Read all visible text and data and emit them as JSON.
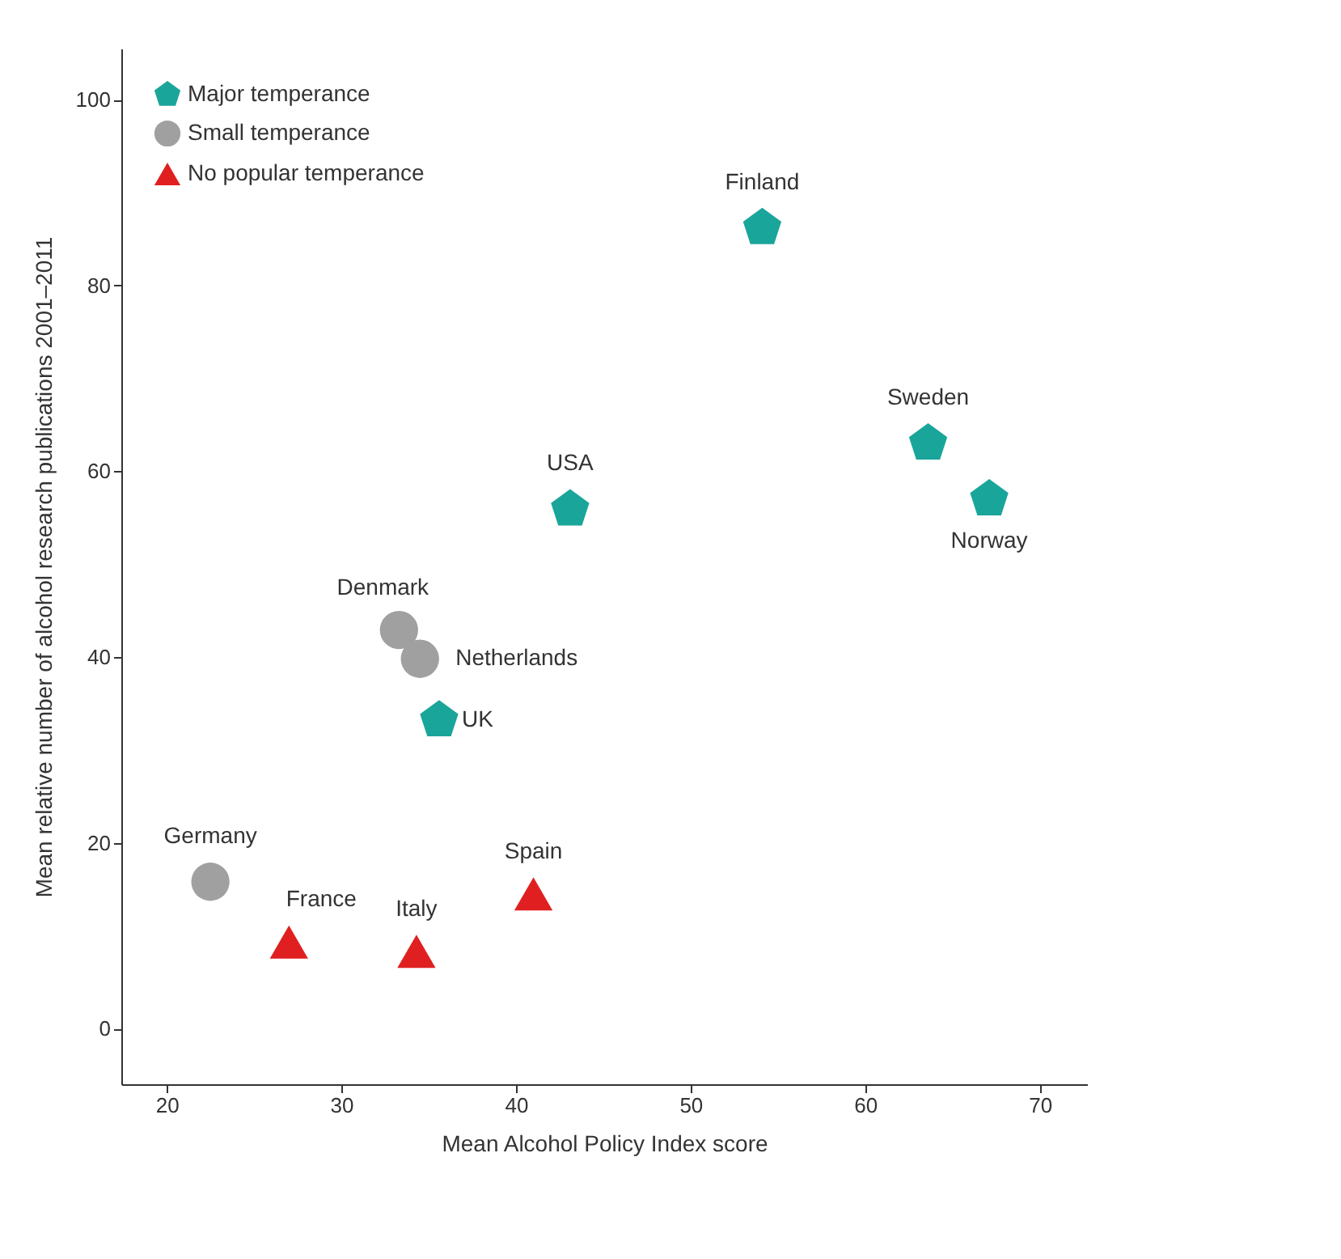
{
  "chart_data": {
    "type": "scatter",
    "xlabel": "Mean Alcohol Policy Index score",
    "ylabel": "Mean relative number of alcohol research publications 2001–2011",
    "xlim": [
      17.4,
      72.7
    ],
    "xticks": [
      20,
      30,
      40,
      50,
      60,
      70
    ],
    "ylim": [
      -6,
      105.5
    ],
    "yticks": [
      0,
      20,
      40,
      60,
      80,
      100
    ],
    "grid": false,
    "legend": "top left",
    "series": [
      {
        "name": "Major temperance",
        "color": "#1aa59a",
        "x": [
          54.1,
          63.6,
          67.1,
          43.1,
          35.6
        ],
        "values": [
          86.2,
          63.0,
          57.0,
          55.9,
          33.2
        ]
      },
      {
        "name": "Small temperance",
        "color": "#a0a0a0",
        "marker": "circle",
        "x": [
          33.3,
          34.5,
          22.5
        ],
        "values": [
          42.9,
          39.8,
          15.8
        ]
      },
      {
        "name": "No popular temperance",
        "color": "#e02020",
        "marker": "triangle",
        "x": [
          27.0,
          34.3,
          41.0
        ],
        "values": [
          9.3,
          8.3,
          14.5
        ]
      }
    ],
    "annotations": [
      {
        "text": "Finland",
        "x": 54.1,
        "y": 86.2
      },
      {
        "text": "Sweden",
        "x": 63.6,
        "y": 63.0
      },
      {
        "text": "Norway",
        "x": 67.1,
        "y": 57.0
      },
      {
        "text": "USA",
        "x": 43.1,
        "y": 55.9
      },
      {
        "text": "UK",
        "x": 35.6,
        "y": 33.2
      },
      {
        "text": "Denmark",
        "x": 33.3,
        "y": 42.9
      },
      {
        "text": "Netherlands",
        "x": 34.5,
        "y": 39.8
      },
      {
        "text": "Germany",
        "x": 22.5,
        "y": 15.8
      },
      {
        "text": "France",
        "x": 27.0,
        "y": 9.3
      },
      {
        "text": "Italy",
        "x": 34.3,
        "y": 8.3
      },
      {
        "text": "Spain",
        "x": 41.0,
        "y": 14.5
      }
    ]
  }
}
